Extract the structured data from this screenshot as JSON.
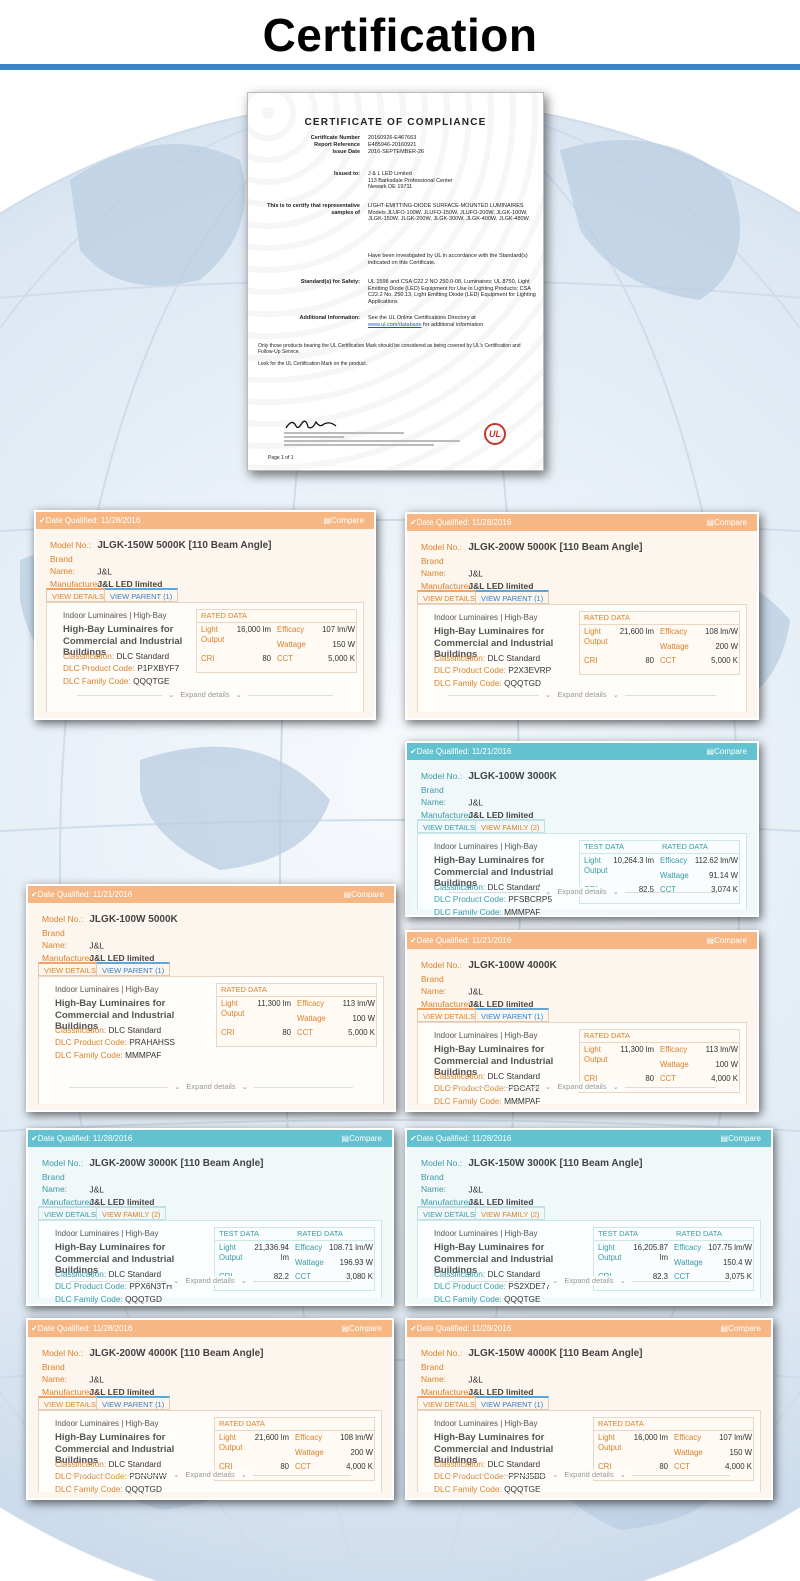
{
  "page": {
    "title": "Certification"
  },
  "certificate": {
    "heading": "CERTIFICATE OF COMPLIANCE",
    "rows": [
      {
        "label": "Certificate Number",
        "value": "20160926-E467663"
      },
      {
        "label": "Report Reference",
        "value": "E485946-20160921"
      },
      {
        "label": "Issue Date",
        "value": "2016-SEPTEMBER-26"
      }
    ],
    "issued_to_label": "Issued to:",
    "issued_to": [
      "J & L LED Limited",
      "113 Barksdale Professional Center",
      "Newark DE 19711"
    ],
    "certify_label": "This is to certify that representative samples of",
    "certify_value": "LIGHT-EMITTING-DIODE SURFACE-MOUNTED LUMINAIRES Models JLUFO-100W, JLUFO-150W, JLUFO-200W, JLGK-100W, JLGK-150W, JLGK-200W, JLGK-300W, JLGK-400W, JLGK-480W.",
    "investigated": "Have been investigated by UL in accordance with the Standard(s) indicated on this Certificate.",
    "standards_label": "Standard(s) for Safety:",
    "standards_value": "UL 1598 and CSA C22.2 NO 250.0-08, Luminaires; UL 8750, Light Emitting Diode (LED) Equipment for Use in Lighting Products; CSA C22.2 No. 250.13, Light Emitting Diode (LED) Equipment for Lighting Applications",
    "additional_label": "Additional Information:",
    "additional_pre": "See the UL Online Certifications Directory at",
    "additional_link": "www.ul.com/database",
    "additional_post": "for additional information",
    "note1": "Only those products bearing the UL Certification Mark should be considered as being covered by UL's Certification and Follow-Up Service.",
    "note2": "Look for the UL Certification Mark on the product.",
    "logo": "UL",
    "page_of": "Page 1 of 1"
  },
  "labels": {
    "model": "Model No.:",
    "brand": "Brand Name:",
    "manufacturer": "Manufacturer:",
    "category": "Indoor Luminaires | High-Bay",
    "product": "High-Bay Luminaires for Commercial and Industrial Buildings",
    "classification": "Classification:",
    "product_code": "DLC Product Code:",
    "family_code": "DLC Family Code:",
    "compare": "Compare",
    "view_details": "VIEW DETAILS",
    "expand": "Expand details",
    "rated": "RATED DATA",
    "test": "TEST DATA",
    "light": "Light Output",
    "efficacy": "Efficacy",
    "wattage": "Wattage",
    "cri": "CRI",
    "cct": "CCT"
  },
  "cards": [
    {
      "id": "c1",
      "theme": "orange",
      "date": "Date Qualified: 11/28/2016",
      "model": "JLGK-150W 5000K [110 Beam Angle]",
      "brand": "J&L",
      "manufacturer": "J&L LED limited",
      "tab2": "VIEW PARENT (1)",
      "classification": "DLC Standard",
      "product_code": "P1PXBYF7",
      "family_code": "QQQTGE",
      "test": false,
      "light": "16,000 lm",
      "efficacy": "107 lm/W",
      "wattage": "150 W",
      "cri": "80",
      "cct": "5,000 K"
    },
    {
      "id": "c2",
      "theme": "orange",
      "date": "Date Qualified: 11/28/2016",
      "model": "JLGK-200W 5000K [110 Beam Angle]",
      "brand": "J&L",
      "manufacturer": "J&L LED limited",
      "tab2": "VIEW PARENT (1)",
      "classification": "DLC Standard",
      "product_code": "P2X3EVRP",
      "family_code": "QQQTGD",
      "test": false,
      "light": "21,600 lm",
      "efficacy": "108 lm/W",
      "wattage": "200 W",
      "cri": "80",
      "cct": "5,000 K"
    },
    {
      "id": "c3",
      "theme": "teal",
      "date": "Date Qualified: 11/21/2016",
      "model": "JLGK-100W 3000K",
      "brand": "J&L",
      "manufacturer": "J&L LED limited",
      "tab2": "VIEW FAMILY (2)",
      "classification": "DLC Standard",
      "product_code": "PFSBCRP5",
      "family_code": "MMMPAF",
      "test": true,
      "light": "10,264.3 lm",
      "efficacy": "112.62 lm/W",
      "wattage": "91.14 W",
      "cri": "82.5",
      "cct": "3,074 K"
    },
    {
      "id": "c4",
      "theme": "orange",
      "date": "Date Qualified: 11/21/2016",
      "model": "JLGK-100W 5000K",
      "brand": "J&L",
      "manufacturer": "J&L LED limited",
      "tab2": "VIEW PARENT (1)",
      "classification": "DLC Standard",
      "product_code": "PRAHAHSS",
      "family_code": "MMMPAF",
      "test": false,
      "light": "11,300 lm",
      "efficacy": "113 lm/W",
      "wattage": "100 W",
      "cri": "80",
      "cct": "5,000 K"
    },
    {
      "id": "c5",
      "theme": "orange",
      "date": "Date Qualified: 11/21/2016",
      "model": "JLGK-100W 4000K",
      "brand": "J&L",
      "manufacturer": "J&L LED limited",
      "tab2": "VIEW PARENT (1)",
      "classification": "DLC Standard",
      "product_code": "PBCAT21Z",
      "family_code": "MMMPAF",
      "test": false,
      "light": "11,300 lm",
      "efficacy": "113 lm/W",
      "wattage": "100 W",
      "cri": "80",
      "cct": "4,000 K"
    },
    {
      "id": "c6",
      "theme": "teal",
      "date": "Date Qualified: 11/28/2016",
      "model": "JLGK-200W 3000K [110 Beam Angle]",
      "brand": "J&L",
      "manufacturer": "J&L LED limited",
      "tab2": "VIEW FAMILY (2)",
      "classification": "DLC Standard",
      "product_code": "PPX6N3TH",
      "family_code": "QQQTGD",
      "test": true,
      "light": "21,336.94 lm",
      "efficacy": "108.71 lm/W",
      "wattage": "196.93 W",
      "cri": "82.2",
      "cct": "3,080 K"
    },
    {
      "id": "c7",
      "theme": "teal",
      "date": "Date Qualified: 11/28/2016",
      "model": "JLGK-150W 3000K [110 Beam Angle]",
      "brand": "J&L",
      "manufacturer": "J&L LED limited",
      "tab2": "VIEW FAMILY (2)",
      "classification": "DLC Standard",
      "product_code": "PS2XDE77",
      "family_code": "QQQTGE",
      "test": true,
      "light": "16,205.87 lm",
      "efficacy": "107.75 lm/W",
      "wattage": "150.4 W",
      "cri": "82.3",
      "cct": "3,075 K"
    },
    {
      "id": "c8",
      "theme": "orange",
      "date": "Date Qualified: 11/28/2016",
      "model": "JLGK-200W 4000K [110 Beam Angle]",
      "brand": "J&L",
      "manufacturer": "J&L LED limited",
      "tab2": "VIEW PARENT (1)",
      "classification": "DLC Standard",
      "product_code": "PDNUNW5G",
      "family_code": "QQQTGD",
      "test": false,
      "light": "21,600 lm",
      "efficacy": "108 lm/W",
      "wattage": "200 W",
      "cri": "80",
      "cct": "4,000 K"
    },
    {
      "id": "c9",
      "theme": "orange",
      "date": "Date Qualified: 11/28/2016",
      "model": "JLGK-150W 4000K [110 Beam Angle]",
      "brand": "J&L",
      "manufacturer": "J&L LED limited",
      "tab2": "VIEW PARENT (1)",
      "classification": "DLC Standard",
      "product_code": "PPNJ5BD8",
      "family_code": "QQQTGE",
      "test": false,
      "light": "16,000 lm",
      "efficacy": "107 lm/W",
      "wattage": "150 W",
      "cri": "80",
      "cct": "4,000 K"
    }
  ]
}
